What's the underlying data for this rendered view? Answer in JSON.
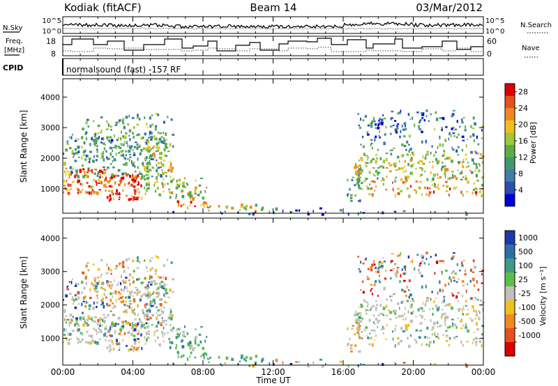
{
  "header": {
    "station": "Kodiak (fitACF)",
    "beam": "Beam 14",
    "date": "03/Mar/2012"
  },
  "top_panels": {
    "nsky_label": "N.Sky",
    "nsearch_label": "N.Search",
    "count_ticks": [
      "10^5",
      "10^0"
    ],
    "freq_label_line1": "Freq.",
    "freq_label_line2": "[MHz]",
    "freq_ticks": [
      "18",
      "8"
    ],
    "nave_label": "Nave",
    "nave_ticks": [
      "60",
      "0"
    ],
    "cpid_label": "CPID",
    "cpid_text": "normalsound (fast) -157 RF"
  },
  "chart_data": [
    {
      "type": "heatmap",
      "name": "power-panel",
      "ylabel": "Slant Range [km]",
      "yticks": [
        "4000",
        "3000",
        "2000",
        "1000"
      ],
      "ylim": [
        200,
        4600
      ],
      "xlim": [
        0,
        24
      ],
      "colorbar": {
        "label": "Power [dB]",
        "ticks": [
          "28",
          "24",
          "20",
          "16",
          "12",
          "8",
          "4"
        ],
        "range": [
          0,
          30
        ],
        "colors": [
          "#0000dd",
          "#2a4fb4",
          "#3f7fa5",
          "#3f9a6e",
          "#5aae46",
          "#a0c832",
          "#f0c020",
          "#f08a20",
          "#e8501c",
          "#dc0000"
        ]
      }
    },
    {
      "type": "heatmap",
      "name": "velocity-panel",
      "ylabel": "Slant Range [km]",
      "yticks": [
        "4000",
        "3000",
        "2000",
        "1000"
      ],
      "ylim": [
        200,
        4600
      ],
      "xlim": [
        0,
        24
      ],
      "colorbar": {
        "label": "Velocity [m s⁻¹]",
        "ticks": [
          "1000",
          "500",
          "100",
          "25",
          "-25",
          "-100",
          "-500",
          "-1000"
        ],
        "colors": [
          "#1c3aa8",
          "#2f6fa8",
          "#3f9a8a",
          "#5ac04a",
          "#c0c0bc",
          "#f0c020",
          "#f08a20",
          "#e85020",
          "#dc0000"
        ]
      }
    }
  ],
  "x_axis": {
    "ticks": [
      "00:00",
      "04:00",
      "08:00",
      "12:00",
      "16:00",
      "20:00",
      "00:00"
    ],
    "label": "Time UT"
  }
}
